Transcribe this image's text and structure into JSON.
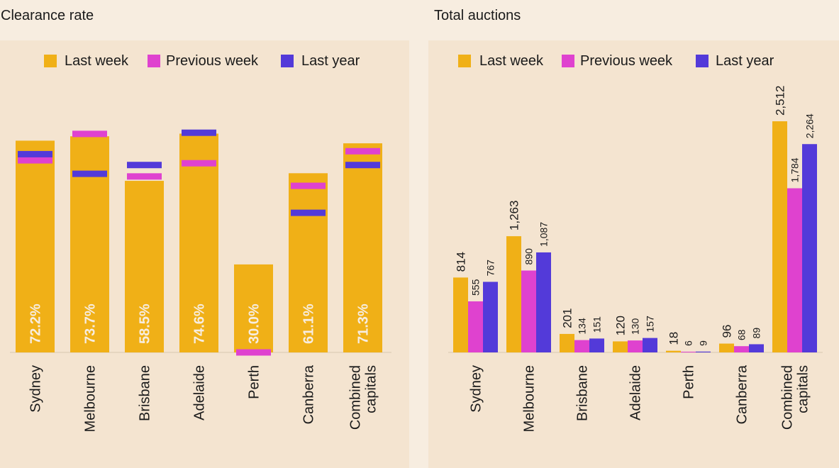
{
  "colors": {
    "last_week": "#f0b017",
    "previous_week": "#df42cf",
    "last_year": "#533ad9",
    "axis": "#d9c7b0"
  },
  "chart_data": [
    {
      "type": "bar",
      "title": "Clearance rate",
      "legend": [
        "Last week",
        "Previous week",
        "Last year"
      ],
      "categories": [
        "Sydney",
        "Melbourne",
        "Brisbane",
        "Adelaide",
        "Perth",
        "Canberra",
        "Combined capitals"
      ],
      "category_lines": [
        [
          "Sydney"
        ],
        [
          "Melbourne"
        ],
        [
          "Brisbane"
        ],
        [
          "Adelaide"
        ],
        [
          "Perth"
        ],
        [
          "Canberra"
        ],
        [
          "Combined",
          "capitals"
        ]
      ],
      "series": [
        {
          "name": "Last week",
          "values": [
            72.2,
            73.7,
            58.5,
            74.6,
            30.0,
            61.1,
            71.3
          ]
        },
        {
          "name": "Previous week",
          "values": [
            65.5,
            74.5,
            60.0,
            64.5,
            0.0,
            56.8,
            68.6
          ]
        },
        {
          "name": "Last year",
          "values": [
            67.6,
            60.9,
            63.9,
            74.9,
            null,
            47.6,
            63.9
          ]
        }
      ],
      "bar_labels": [
        "72.2%",
        "73.7%",
        "58.5%",
        "74.6%",
        "30.0%",
        "61.1%",
        "71.3%"
      ],
      "ylim": [
        0,
        100
      ]
    },
    {
      "type": "bar",
      "title": "Total auctions",
      "legend": [
        "Last week",
        "Previous week",
        "Last year"
      ],
      "categories": [
        "Sydney",
        "Melbourne",
        "Brisbane",
        "Adelaide",
        "Perth",
        "Canberra",
        "Combined capitals"
      ],
      "category_lines": [
        [
          "Sydney"
        ],
        [
          "Melbourne"
        ],
        [
          "Brisbane"
        ],
        [
          "Adelaide"
        ],
        [
          "Perth"
        ],
        [
          "Canberra"
        ],
        [
          "Combined",
          "capitals"
        ]
      ],
      "series": [
        {
          "name": "Last week",
          "values": [
            814,
            1263,
            201,
            120,
            18,
            96,
            2512
          ],
          "labels": [
            "814",
            "1,263",
            "201",
            "120",
            "18",
            "96",
            "2,512"
          ]
        },
        {
          "name": "Previous week",
          "values": [
            555,
            890,
            134,
            130,
            6,
            68,
            1784
          ],
          "labels": [
            "555",
            "890",
            "134",
            "130",
            "6",
            "68",
            "1,784"
          ]
        },
        {
          "name": "Last year",
          "values": [
            767,
            1087,
            151,
            157,
            9,
            89,
            2264
          ],
          "labels": [
            "767",
            "1,087",
            "151",
            "157",
            "9",
            "89",
            "2,264"
          ]
        }
      ],
      "ylim": [
        0,
        2560
      ]
    }
  ]
}
